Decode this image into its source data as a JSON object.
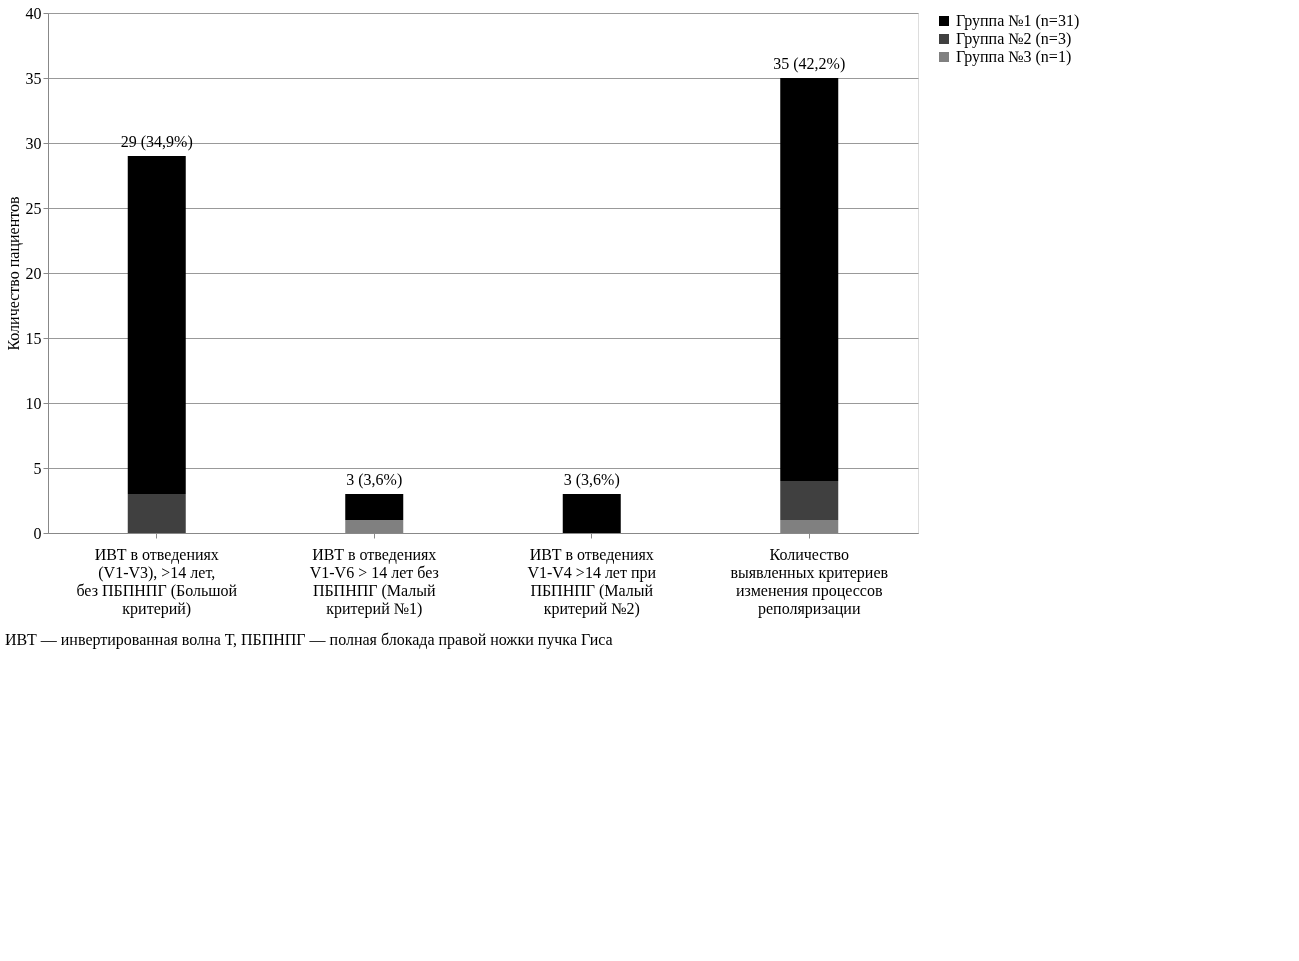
{
  "chart_data": {
    "type": "bar",
    "stacked": true,
    "ylabel": "Количество пациентов",
    "categories": [
      "ИВТ в отведениях (V1-V3), >14 лет, без ПБПНПГ (Большой критерий)",
      "ИВТ в отведениях V1-V6 > 14 лет без ПБПНПГ (Малый критерий №1)",
      "ИВТ в отведениях V1-V4 >14 лет при ПБПНПГ (Малый критерий №2)",
      "Количество выявленных критериев изменения процессов реполяризации"
    ],
    "series": [
      {
        "name": "Группа №3 (n=1)",
        "color": "#808080",
        "values": [
          0,
          1,
          0,
          1
        ]
      },
      {
        "name": "Группа №2 (n=3)",
        "color": "#404040",
        "values": [
          3,
          0,
          0,
          3
        ]
      },
      {
        "name": "Группа №1 (n=31)",
        "color": "#000000",
        "values": [
          26,
          2,
          3,
          31
        ]
      }
    ],
    "totals": [
      "29 (34,9%)",
      "3 (3,6%)",
      "3 (3,6%)",
      "35 (42,2%)"
    ],
    "ylim": [
      0,
      40
    ],
    "yticks": [
      0,
      5,
      10,
      15,
      20,
      25,
      30,
      35,
      40
    ],
    "grid": "y",
    "legend": "right",
    "annotations": [
      "ИВТ — инвертированная волна Т, ПБПНПГ — полная блокада правой ножки пучка Гиса"
    ]
  }
}
